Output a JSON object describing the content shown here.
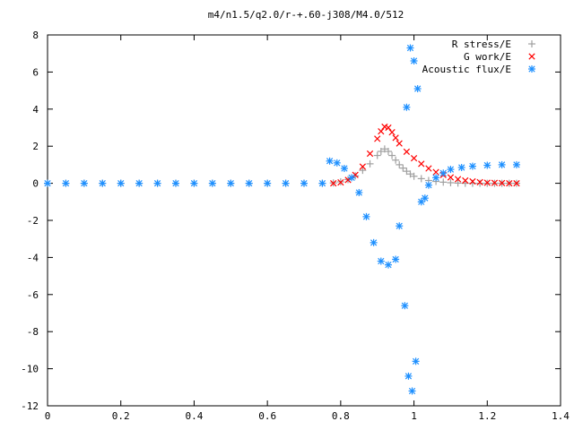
{
  "chart_data": {
    "type": "scatter",
    "title": "m4/n1.5/q2.0/r-+.60-j308/M4.0/512",
    "xlabel": "",
    "ylabel": "",
    "xlim": [
      0,
      1.4
    ],
    "ylim": [
      -12,
      8
    ],
    "x_ticks": [
      0,
      0.2,
      0.4,
      0.6,
      0.8,
      1,
      1.2,
      1.4
    ],
    "x_tick_labels": [
      "0",
      "0.2",
      "0.4",
      "0.6",
      "0.8",
      "1",
      "1.2",
      "1.4"
    ],
    "y_ticks": [
      -12,
      -10,
      -8,
      -6,
      -4,
      -2,
      0,
      2,
      4,
      6,
      8
    ],
    "y_tick_labels": [
      "-12",
      "-10",
      "-8",
      "-6",
      "-4",
      "-2",
      "0",
      "2",
      "4",
      "6",
      "8"
    ],
    "grid": false,
    "legend_position": "top-right",
    "series": [
      {
        "name": "R stress/E",
        "marker": "plus",
        "color": "#a0a0a0",
        "x": [
          0.0,
          0.05,
          0.1,
          0.15,
          0.2,
          0.25,
          0.3,
          0.35,
          0.4,
          0.45,
          0.5,
          0.55,
          0.6,
          0.65,
          0.7,
          0.75,
          0.78,
          0.8,
          0.82,
          0.84,
          0.86,
          0.88,
          0.9,
          0.91,
          0.92,
          0.93,
          0.94,
          0.95,
          0.96,
          0.97,
          0.98,
          0.99,
          1.0,
          1.02,
          1.04,
          1.06,
          1.08,
          1.1,
          1.12,
          1.14,
          1.16,
          1.18,
          1.2,
          1.22,
          1.24,
          1.26,
          1.28
        ],
        "y": [
          0,
          0,
          0,
          0,
          0,
          0,
          0,
          0,
          0,
          0,
          0,
          0,
          0,
          0,
          0,
          0,
          0.02,
          0.08,
          0.2,
          0.4,
          0.7,
          1.05,
          1.5,
          1.72,
          1.85,
          1.72,
          1.5,
          1.25,
          1.0,
          0.82,
          0.65,
          0.5,
          0.38,
          0.25,
          0.15,
          0.1,
          0.06,
          0.03,
          0.01,
          0,
          0,
          0,
          0,
          0,
          0,
          0,
          0
        ]
      },
      {
        "name": "G work/E",
        "marker": "cross",
        "color": "#ff0000",
        "x": [
          0.78,
          0.8,
          0.82,
          0.84,
          0.86,
          0.88,
          0.9,
          0.91,
          0.92,
          0.93,
          0.94,
          0.95,
          0.96,
          0.98,
          1.0,
          1.02,
          1.04,
          1.06,
          1.08,
          1.1,
          1.12,
          1.14,
          1.16,
          1.18,
          1.2,
          1.22,
          1.24,
          1.26,
          1.28
        ],
        "y": [
          0,
          0.05,
          0.18,
          0.45,
          0.9,
          1.6,
          2.4,
          2.8,
          3.05,
          3.0,
          2.75,
          2.45,
          2.15,
          1.7,
          1.35,
          1.05,
          0.8,
          0.6,
          0.45,
          0.32,
          0.22,
          0.15,
          0.1,
          0.06,
          0.03,
          0.02,
          0.01,
          0,
          0
        ]
      },
      {
        "name": "Acoustic flux/E",
        "marker": "star",
        "color": "#1e90ff",
        "x": [
          0.0,
          0.05,
          0.1,
          0.15,
          0.2,
          0.25,
          0.3,
          0.35,
          0.4,
          0.45,
          0.5,
          0.55,
          0.6,
          0.65,
          0.7,
          0.75,
          0.77,
          0.79,
          0.81,
          0.83,
          0.85,
          0.87,
          0.89,
          0.91,
          0.93,
          0.95,
          0.96,
          0.975,
          0.98,
          0.985,
          0.99,
          0.995,
          1.0,
          1.005,
          1.01,
          1.02,
          1.03,
          1.04,
          1.06,
          1.08,
          1.1,
          1.13,
          1.16,
          1.2,
          1.24,
          1.28
        ],
        "y": [
          0,
          0,
          0,
          0,
          0,
          0,
          0,
          0,
          0,
          0,
          0,
          0,
          0,
          0,
          0,
          0,
          1.2,
          1.1,
          0.8,
          0.3,
          -0.5,
          -1.8,
          -3.2,
          -4.2,
          -4.4,
          -4.1,
          -2.3,
          -6.6,
          4.1,
          -10.4,
          7.3,
          -11.2,
          6.6,
          -9.6,
          5.1,
          -1.0,
          -0.8,
          -0.1,
          0.3,
          0.55,
          0.75,
          0.85,
          0.92,
          0.97,
          1.0,
          1.0
        ]
      }
    ]
  }
}
